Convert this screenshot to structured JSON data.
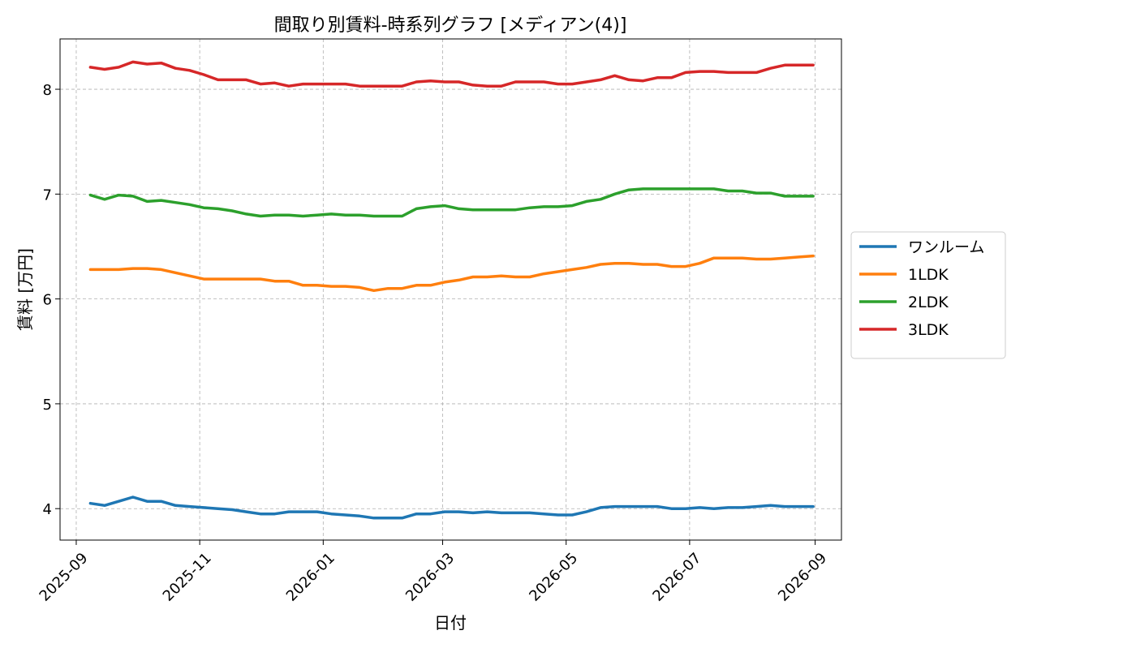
{
  "chart_data": {
    "type": "line",
    "title": "間取り別賃料-時系列グラフ [メディアン(4)]",
    "xlabel": "日付",
    "ylabel": "賃料 [万円]",
    "xlim": [
      "2025-08-24",
      "2026-09-14"
    ],
    "ylim": [
      3.7,
      8.48
    ],
    "grid": true,
    "legend_position": "right-center, outside plot",
    "x_ticks": [
      "2025-09",
      "2025-11",
      "2026-01",
      "2026-03",
      "2026-05",
      "2026-07",
      "2026-09"
    ],
    "y_ticks": [
      4,
      5,
      6,
      7,
      8
    ],
    "x": [
      "2025-09-08",
      "2025-09-15",
      "2025-09-22",
      "2025-09-29",
      "2025-10-06",
      "2025-10-13",
      "2025-10-20",
      "2025-10-27",
      "2025-11-03",
      "2025-11-10",
      "2025-11-17",
      "2025-11-24",
      "2025-12-01",
      "2025-12-08",
      "2025-12-15",
      "2025-12-22",
      "2025-12-29",
      "2026-01-05",
      "2026-01-12",
      "2026-01-19",
      "2026-01-26",
      "2026-02-02",
      "2026-02-09",
      "2026-02-16",
      "2026-02-23",
      "2026-03-02",
      "2026-03-09",
      "2026-03-16",
      "2026-03-23",
      "2026-03-30",
      "2026-04-06",
      "2026-04-13",
      "2026-04-20",
      "2026-04-27",
      "2026-05-04",
      "2026-05-11",
      "2026-05-18",
      "2026-05-25",
      "2026-06-01",
      "2026-06-08",
      "2026-06-15",
      "2026-06-22",
      "2026-06-29",
      "2026-07-06",
      "2026-07-13",
      "2026-07-20",
      "2026-07-27",
      "2026-08-03",
      "2026-08-10",
      "2026-08-17",
      "2026-08-24",
      "2026-08-31"
    ],
    "series": [
      {
        "name": "ワンルーム",
        "color": "#1f77b4",
        "values": [
          4.05,
          4.03,
          4.07,
          4.11,
          4.07,
          4.07,
          4.03,
          4.02,
          4.01,
          4.0,
          3.99,
          3.97,
          3.95,
          3.95,
          3.97,
          3.97,
          3.97,
          3.95,
          3.94,
          3.93,
          3.91,
          3.91,
          3.91,
          3.95,
          3.95,
          3.97,
          3.97,
          3.96,
          3.97,
          3.96,
          3.96,
          3.96,
          3.95,
          3.94,
          3.94,
          3.97,
          4.01,
          4.02,
          4.02,
          4.02,
          4.02,
          4.0,
          4.0,
          4.01,
          4.0,
          4.01,
          4.01,
          4.02,
          4.03,
          4.02,
          4.02,
          4.02
        ]
      },
      {
        "name": "1LDK",
        "color": "#ff7f0e",
        "values": [
          6.28,
          6.28,
          6.28,
          6.29,
          6.29,
          6.28,
          6.25,
          6.22,
          6.19,
          6.19,
          6.19,
          6.19,
          6.19,
          6.17,
          6.17,
          6.13,
          6.13,
          6.12,
          6.12,
          6.11,
          6.08,
          6.1,
          6.1,
          6.13,
          6.13,
          6.16,
          6.18,
          6.21,
          6.21,
          6.22,
          6.21,
          6.21,
          6.24,
          6.26,
          6.28,
          6.3,
          6.33,
          6.34,
          6.34,
          6.33,
          6.33,
          6.31,
          6.31,
          6.34,
          6.39,
          6.39,
          6.39,
          6.38,
          6.38,
          6.39,
          6.4,
          6.41
        ]
      },
      {
        "name": "2LDK",
        "color": "#2ca02c",
        "values": [
          6.99,
          6.95,
          6.99,
          6.98,
          6.93,
          6.94,
          6.92,
          6.9,
          6.87,
          6.86,
          6.84,
          6.81,
          6.79,
          6.8,
          6.8,
          6.79,
          6.8,
          6.81,
          6.8,
          6.8,
          6.79,
          6.79,
          6.79,
          6.86,
          6.88,
          6.89,
          6.86,
          6.85,
          6.85,
          6.85,
          6.85,
          6.87,
          6.88,
          6.88,
          6.89,
          6.93,
          6.95,
          7.0,
          7.04,
          7.05,
          7.05,
          7.05,
          7.05,
          7.05,
          7.05,
          7.03,
          7.03,
          7.01,
          7.01,
          6.98,
          6.98,
          6.98
        ]
      },
      {
        "name": "3LDK",
        "color": "#d62728",
        "values": [
          8.21,
          8.19,
          8.21,
          8.26,
          8.24,
          8.25,
          8.2,
          8.18,
          8.14,
          8.09,
          8.09,
          8.09,
          8.05,
          8.06,
          8.03,
          8.05,
          8.05,
          8.05,
          8.05,
          8.03,
          8.03,
          8.03,
          8.03,
          8.07,
          8.08,
          8.07,
          8.07,
          8.04,
          8.03,
          8.03,
          8.07,
          8.07,
          8.07,
          8.05,
          8.05,
          8.07,
          8.09,
          8.13,
          8.09,
          8.08,
          8.11,
          8.11,
          8.16,
          8.17,
          8.17,
          8.16,
          8.16,
          8.16,
          8.2,
          8.23,
          8.23,
          8.23
        ]
      }
    ]
  }
}
